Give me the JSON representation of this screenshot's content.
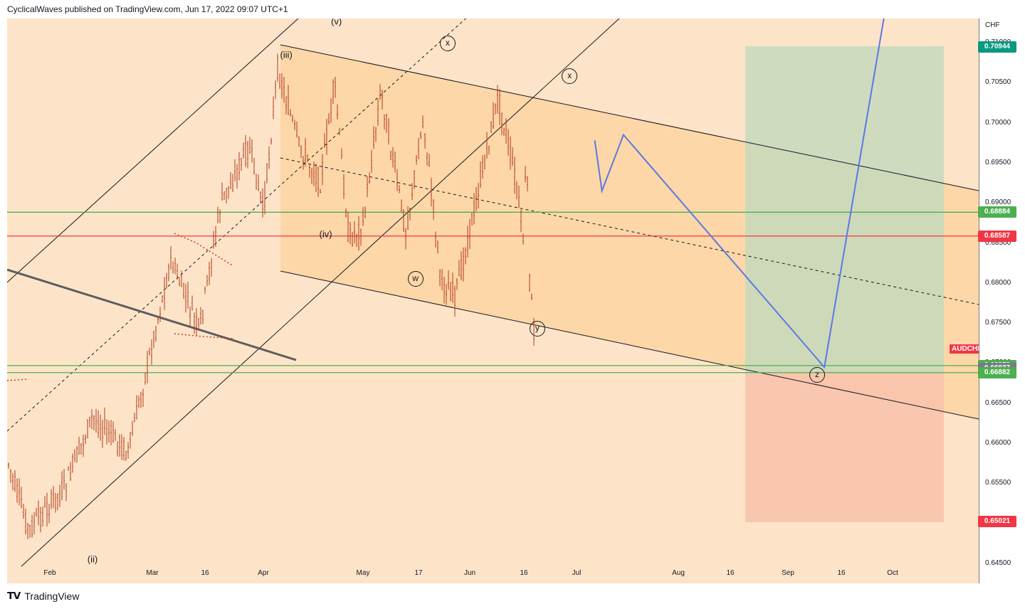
{
  "header": {
    "text": "CyclicalWaves published on TradingView.com, Jun 17, 2022 09:07 UTC+1"
  },
  "footer": {
    "brand": "TradingView"
  },
  "symbol": "AUDCHF",
  "colors": {
    "background": "#fde4c8",
    "channel_fill": "#fcd39c",
    "target_zone": "#c6d9bd",
    "stop_zone": "#f8c3ac",
    "green_line": "#4caf50",
    "red_line": "#f23645",
    "projection": "#5b78e6",
    "candle": "#b13a1c"
  },
  "chart_data": {
    "type": "candlestick",
    "title": "",
    "currency": "CHF",
    "ylim": [
      0.645,
      0.715
    ],
    "y_ticks": [
      "0.71000",
      "0.70500",
      "0.70000",
      "0.69500",
      "0.69000",
      "0.68500",
      "0.68000",
      "0.67500",
      "0.67000",
      "0.66500",
      "0.66000",
      "0.65500",
      "0.65000",
      "0.64500"
    ],
    "x_ticks": [
      "Feb",
      "Mar",
      "16",
      "Apr",
      "May",
      "17",
      "Jun",
      "16",
      "Jul",
      "Aug",
      "16",
      "Sep",
      "16",
      "Oct"
    ],
    "price_levels": [
      {
        "value": 0.70944,
        "label": "0.70944",
        "color": "#089981"
      },
      {
        "value": 0.68884,
        "label": "0.68884",
        "color": "#4caf50"
      },
      {
        "value": 0.68587,
        "label": "0.68587",
        "color": "#f23645"
      },
      {
        "value": 0.6697,
        "label": "0.66970",
        "color": "#4caf50"
      },
      {
        "value": 0.66937,
        "label": "0.66937",
        "color": "#787b86"
      },
      {
        "value": 0.66882,
        "label": "0.66882",
        "color": "#4caf50"
      },
      {
        "value": 0.65021,
        "label": "0.65021",
        "color": "#f23645"
      }
    ],
    "wave_labels": [
      {
        "text": "(ii)",
        "x_date": "2022-01-25",
        "y": 0.6455
      },
      {
        "text": "(iii)",
        "x_date": "2022-03-20",
        "y": 0.7085
      },
      {
        "text": "(iv)",
        "x_date": "2022-03-31",
        "y": 0.6861
      },
      {
        "text": "(v)",
        "x_date": "2022-04-03",
        "y": 0.7127
      }
    ],
    "circled_labels": [
      {
        "text": "x",
        "x_date": "2022-05-04",
        "y": 0.7099
      },
      {
        "text": "x",
        "x_date": "2022-06-07",
        "y": 0.7058
      },
      {
        "text": "w",
        "x_date": "2022-04-25",
        "y": 0.6805
      },
      {
        "text": "y",
        "x_date": "2022-05-29",
        "y": 0.6743
      },
      {
        "text": "z",
        "x_date": "2022-08-15",
        "y": 0.6685
      }
    ],
    "projection_path": [
      {
        "date": "2022-06-14",
        "y": 0.6978
      },
      {
        "date": "2022-06-16",
        "y": 0.6915
      },
      {
        "date": "2022-06-22",
        "y": 0.6985
      },
      {
        "date": "2022-08-17",
        "y": 0.6695
      },
      {
        "date": "2022-09-06",
        "y": 0.722
      }
    ],
    "last_price": 0.6739
  }
}
